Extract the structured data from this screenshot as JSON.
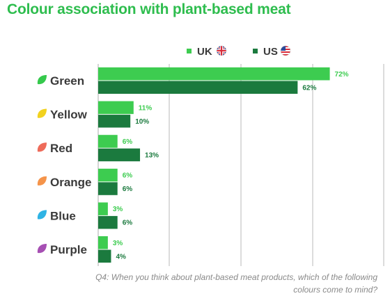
{
  "title": "Colour association with plant-based meat",
  "footnote": "Q4: When you think about plant-based meat products, which of the following colours come to mind?",
  "colors": {
    "uk": "#3dcc50",
    "us": "#1b7a3e",
    "title": "#2ebd4e",
    "grid": "#b9b9b9",
    "text": "#3a3a3a"
  },
  "chart_data": {
    "type": "bar",
    "orientation": "horizontal",
    "categories": [
      "Green",
      "Yellow",
      "Red",
      "Orange",
      "Blue",
      "Purple"
    ],
    "category_icon_colors": [
      "#35c94c",
      "#f2d21f",
      "#ee6b5a",
      "#f5944a",
      "#2fb3e4",
      "#a64fb3"
    ],
    "series": [
      {
        "name": "UK",
        "flag": "uk-flag-icon",
        "values": [
          72,
          11,
          6,
          6,
          3,
          3
        ],
        "labels": [
          "72%",
          "11%",
          "6%",
          "6%",
          "3%",
          "3%"
        ]
      },
      {
        "name": "US",
        "flag": "us-flag-icon",
        "values": [
          62,
          10,
          13,
          6,
          6,
          4
        ],
        "labels": [
          "62%",
          "10%",
          "13%",
          "6%",
          "6%",
          "4%"
        ]
      }
    ],
    "xlim": [
      0,
      80
    ],
    "grid": true,
    "legend_position": "top-right",
    "title": "Colour association with plant-based meat"
  }
}
